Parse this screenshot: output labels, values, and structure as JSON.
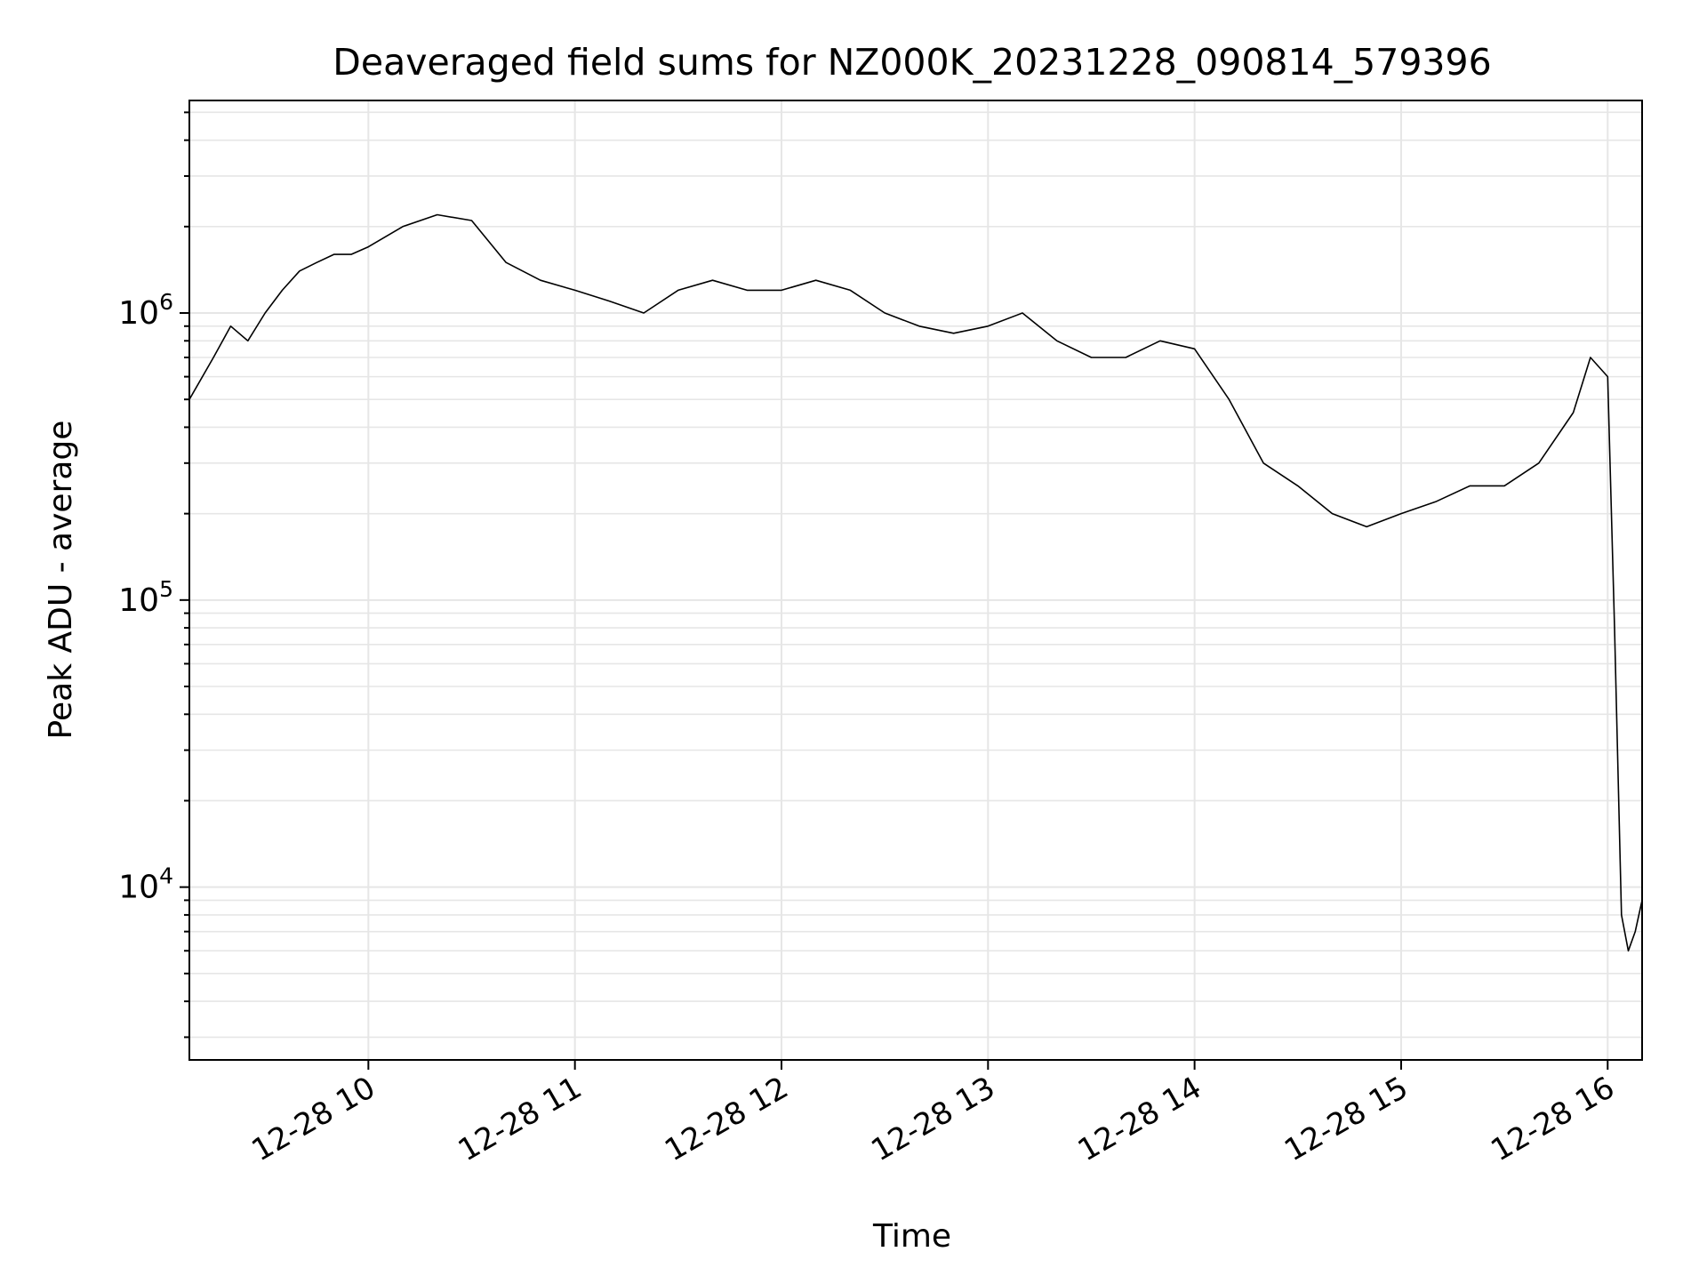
{
  "chart_data": {
    "type": "line",
    "title": "Deaveraged field sums for NZ000K_20231228_090814_579396",
    "xlabel": "Time",
    "ylabel": "Peak ADU - average",
    "x_scale": "time",
    "y_scale": "log",
    "xlim": [
      "2023-12-28 09:08",
      "2023-12-28 16:10"
    ],
    "ylim": [
      2500,
      5500000
    ],
    "x_ticks": [
      {
        "time": "2023-12-28 10:00",
        "label": "12-28 10"
      },
      {
        "time": "2023-12-28 11:00",
        "label": "12-28 11"
      },
      {
        "time": "2023-12-28 12:00",
        "label": "12-28 12"
      },
      {
        "time": "2023-12-28 13:00",
        "label": "12-28 13"
      },
      {
        "time": "2023-12-28 14:00",
        "label": "12-28 14"
      },
      {
        "time": "2023-12-28 15:00",
        "label": "12-28 15"
      },
      {
        "time": "2023-12-28 16:00",
        "label": "12-28 16"
      }
    ],
    "y_ticks": [
      {
        "value": 10000,
        "base": "10",
        "exp": "4"
      },
      {
        "value": 100000,
        "base": "10",
        "exp": "5"
      },
      {
        "value": 1000000,
        "base": "10",
        "exp": "6"
      }
    ],
    "grid": true,
    "line_color": "#000000",
    "grid_color": "#e6e6e6",
    "series": [
      {
        "x": [
          "2023-12-28 09:08",
          "2023-12-28 09:15",
          "2023-12-28 09:20",
          "2023-12-28 09:25",
          "2023-12-28 09:30",
          "2023-12-28 09:35",
          "2023-12-28 09:40",
          "2023-12-28 09:45",
          "2023-12-28 09:50",
          "2023-12-28 09:55",
          "2023-12-28 10:00",
          "2023-12-28 10:10",
          "2023-12-28 10:20",
          "2023-12-28 10:30",
          "2023-12-28 10:40",
          "2023-12-28 10:50",
          "2023-12-28 11:00",
          "2023-12-28 11:10",
          "2023-12-28 11:20",
          "2023-12-28 11:30",
          "2023-12-28 11:40",
          "2023-12-28 11:50",
          "2023-12-28 12:00",
          "2023-12-28 12:10",
          "2023-12-28 12:20",
          "2023-12-28 12:30",
          "2023-12-28 12:40",
          "2023-12-28 12:50",
          "2023-12-28 13:00",
          "2023-12-28 13:10",
          "2023-12-28 13:20",
          "2023-12-28 13:30",
          "2023-12-28 13:40",
          "2023-12-28 13:50",
          "2023-12-28 14:00",
          "2023-12-28 14:10",
          "2023-12-28 14:20",
          "2023-12-28 14:30",
          "2023-12-28 14:40",
          "2023-12-28 14:50",
          "2023-12-28 15:00",
          "2023-12-28 15:10",
          "2023-12-28 15:20",
          "2023-12-28 15:30",
          "2023-12-28 15:40",
          "2023-12-28 15:50",
          "2023-12-28 15:55",
          "2023-12-28 16:00",
          "2023-12-28 16:02",
          "2023-12-28 16:04",
          "2023-12-28 16:06",
          "2023-12-28 16:08",
          "2023-12-28 16:10"
        ],
        "y": [
          500000,
          700000,
          900000,
          800000,
          1000000,
          1200000,
          1400000,
          1500000,
          1600000,
          1600000,
          1700000,
          2000000,
          2200000,
          2100000,
          1500000,
          1300000,
          1200000,
          1100000,
          1000000,
          1200000,
          1300000,
          1200000,
          1200000,
          1300000,
          1200000,
          1000000,
          900000,
          850000,
          900000,
          1000000,
          800000,
          700000,
          700000,
          800000,
          750000,
          500000,
          300000,
          250000,
          200000,
          180000,
          200000,
          220000,
          250000,
          250000,
          300000,
          450000,
          700000,
          600000,
          80000,
          8000,
          6000,
          7000,
          9000
        ]
      }
    ]
  }
}
